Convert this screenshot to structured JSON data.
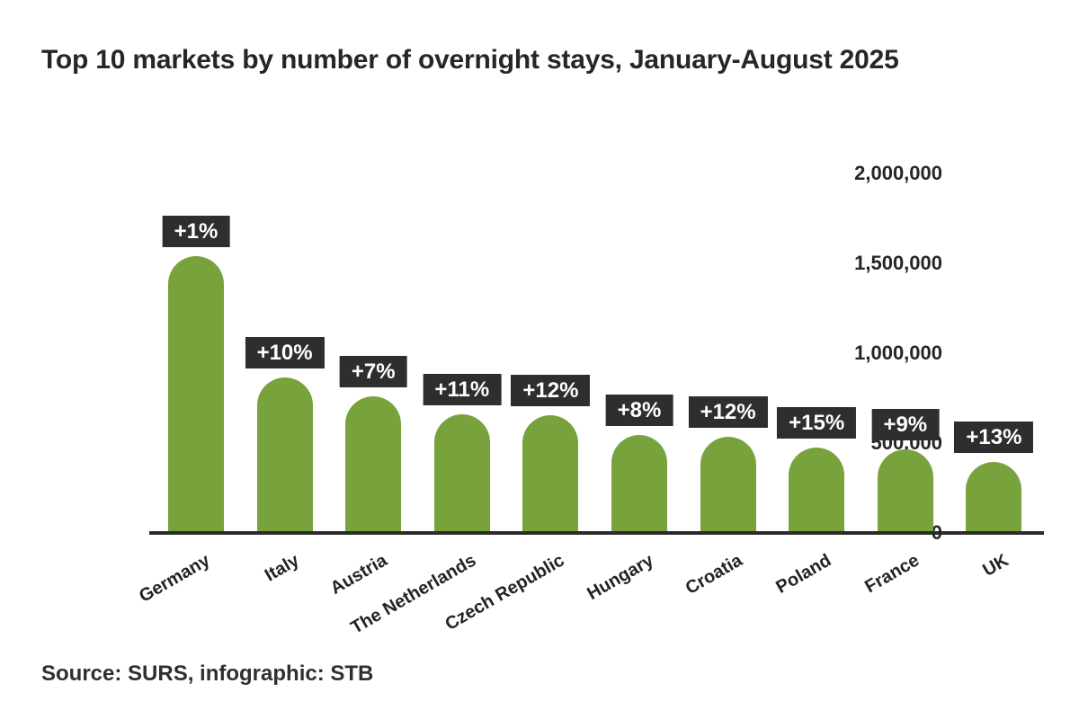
{
  "title": "Top 10 markets by number of overnight stays, January-August 2025",
  "source_note": "Source: SURS, infographic: STB",
  "colors": {
    "bar": "#78a23c",
    "label_bg": "#2e2e2e",
    "label_text": "#ffffff",
    "text": "#262626",
    "axis": "#2b2b2b",
    "background": "#ffffff"
  },
  "chart_data": {
    "type": "bar",
    "title": "Top 10 markets by number of overnight stays, January-August 2025",
    "categories": [
      "Germany",
      "Italy",
      "Austria",
      "The Netherlands",
      "Czech Republic",
      "Hungary",
      "Croatia",
      "Poland",
      "France",
      "UK"
    ],
    "values": [
      1530000,
      855000,
      750000,
      650000,
      645000,
      535000,
      525000,
      465000,
      455000,
      385000
    ],
    "bar_labels": [
      "+1%",
      "+10%",
      "+7%",
      "+11%",
      "+12%",
      "+8%",
      "+12%",
      "+15%",
      "+9%",
      "+13%"
    ],
    "xlabel": "",
    "ylabel": "",
    "ylim": [
      0,
      2000000
    ],
    "y_ticks": {
      "values": [
        0,
        500000,
        1000000,
        1500000,
        2000000
      ],
      "labels": [
        "0",
        "500,000",
        "1,000,000",
        "1,500,000",
        "2,000,000"
      ]
    },
    "grid": false,
    "legend": false
  }
}
